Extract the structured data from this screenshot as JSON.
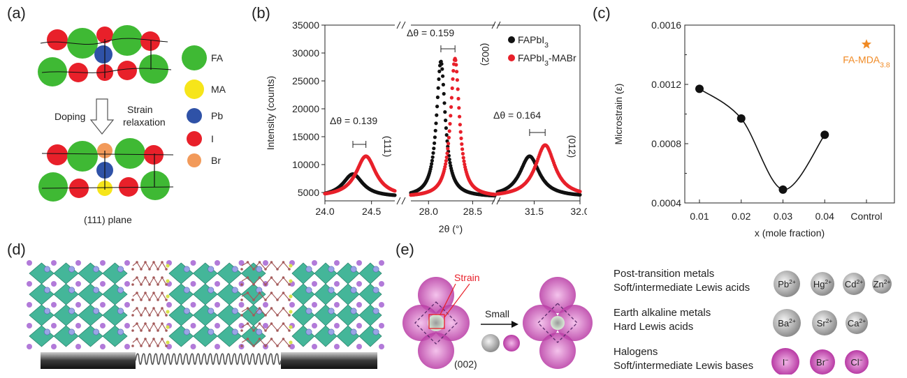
{
  "panels": {
    "a": {
      "label": "(a)",
      "legend": [
        "FA",
        "MA",
        "Pb",
        "I",
        "Br"
      ],
      "legend_colors": [
        "#3fb934",
        "#f6e51a",
        "#2f52a7",
        "#e8202a",
        "#f29a5a"
      ],
      "doping_label": "Doping",
      "strain_label_1": "Strain",
      "strain_label_2": "relaxation",
      "plane_label": "(111) plane"
    },
    "b": {
      "label": "(b)"
    },
    "c": {
      "label": "(c)"
    },
    "d": {
      "label": "(d)"
    },
    "e": {
      "label": "(e)",
      "strain_label": "Strain",
      "small_label": "Small",
      "plane_label": "(002)",
      "groups": [
        {
          "title": "Post-transition metals",
          "subtitle": "Soft/intermediate Lewis acids",
          "ions": [
            "Pb2+",
            "Hg2+",
            "Cd2+",
            "Zn2+"
          ]
        },
        {
          "title": "Earth alkaline metals",
          "subtitle": "Hard Lewis acids",
          "ions": [
            "Ba2+",
            "Sr2+",
            "Ca2+"
          ]
        },
        {
          "title": "Halogens",
          "subtitle": "Soft/intermediate Lewis bases",
          "ions": [
            "I−",
            "Br−",
            "Cl−"
          ]
        }
      ]
    }
  },
  "chart_data": [
    {
      "type": "line",
      "panel": "b",
      "ylabel": "Intensity (counts)",
      "xlabel": "2θ (°)",
      "ylim": [
        3500,
        35000
      ],
      "yticks": [
        5000,
        10000,
        15000,
        20000,
        25000,
        30000,
        35000
      ],
      "broken_axis": true,
      "segments": [
        {
          "xlim": [
            24.0,
            24.75
          ],
          "xticks": [
            24.0,
            24.5
          ],
          "xtick_labels": [
            "24.0",
            "24.5"
          ],
          "peak_label": "(111)",
          "delta_label": "Δθ = 0.139"
        },
        {
          "xlim": [
            27.8,
            28.75
          ],
          "xticks": [
            28.0,
            28.5
          ],
          "xtick_labels": [
            "28.0",
            "28.5"
          ],
          "peak_label": "(002)",
          "delta_label": "Δθ = 0.159"
        },
        {
          "xlim": [
            31.1,
            32.0
          ],
          "xticks": [
            31.5,
            32.0
          ],
          "xtick_labels": [
            "31.5",
            "32.0"
          ],
          "peak_label": "(012)",
          "delta_label": "Δθ = 0.164"
        }
      ],
      "series": [
        {
          "name": "FAPbI3",
          "color": "#111111",
          "peaks": [
            {
              "x": 24.3,
              "y": 8300
            },
            {
              "x": 28.14,
              "y": 28500
            },
            {
              "x": 31.45,
              "y": 11500
            }
          ]
        },
        {
          "name": "FAPbI3-MABr",
          "color": "#e8202a",
          "peaks": [
            {
              "x": 24.44,
              "y": 11500
            },
            {
              "x": 28.3,
              "y": 29000
            },
            {
              "x": 31.62,
              "y": 13500
            }
          ]
        }
      ],
      "legend_position": "top-right"
    },
    {
      "type": "line",
      "panel": "c",
      "ylabel": "Microstrain (ε)",
      "xlabel": "x (mole fraction)",
      "ylim": [
        0.0004,
        0.0016
      ],
      "yticks": [
        0.0004,
        0.0008,
        0.0012,
        0.0016
      ],
      "ytick_labels": [
        "0.0004",
        "0.0008",
        "0.0012",
        "0.0016"
      ],
      "categories": [
        "0.01",
        "0.02",
        "0.03",
        "0.04",
        "Control"
      ],
      "values": [
        0.00117,
        0.00097,
        0.00049,
        0.00086,
        0.00147
      ],
      "control_label": "FA-MDA3.8",
      "control_color": "#f08a24"
    }
  ]
}
